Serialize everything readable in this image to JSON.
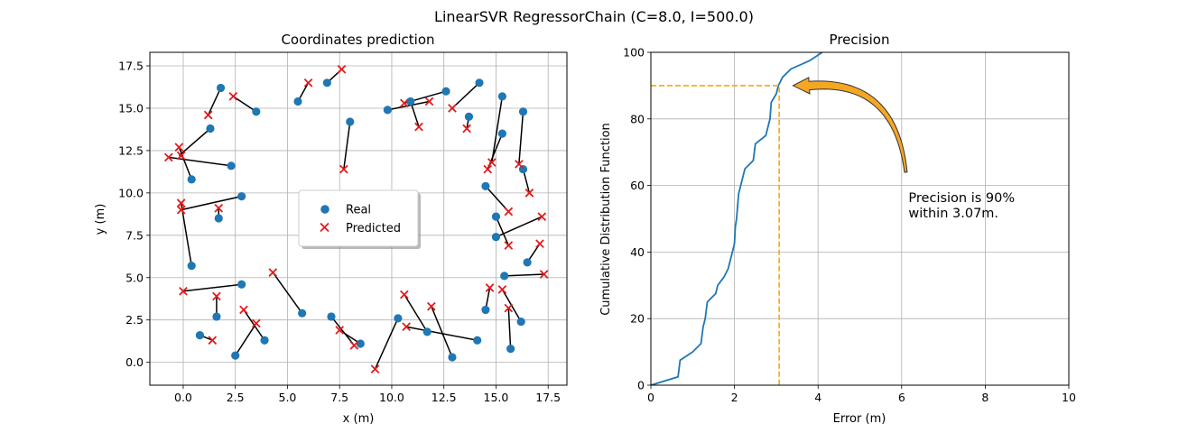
{
  "figure": {
    "suptitle": "LinearSVR RegressorChain (C=8.0, I=500.0)"
  },
  "chart_data": [
    {
      "type": "scatter",
      "title": "Coordinates prediction",
      "xlabel": "x (m)",
      "ylabel": "y (m)",
      "xlim": [
        -1.6,
        18.4
      ],
      "ylim": [
        -1.35,
        18.3
      ],
      "xticks": [
        "0.0",
        "2.5",
        "5.0",
        "7.5",
        "10.0",
        "12.5",
        "15.0",
        "17.5"
      ],
      "xtick_values": [
        0,
        2.5,
        5,
        7.5,
        10,
        12.5,
        15,
        17.5
      ],
      "yticks": [
        "0.0",
        "2.5",
        "5.0",
        "7.5",
        "10.0",
        "12.5",
        "15.0",
        "17.5"
      ],
      "ytick_values": [
        0,
        2.5,
        5,
        7.5,
        10,
        12.5,
        15,
        17.5
      ],
      "grid": true,
      "legend": {
        "placement": "center",
        "entries": [
          {
            "label": "Real",
            "marker": "circle",
            "color": "#1f77b4"
          },
          {
            "label": "Predicted",
            "marker": "x",
            "color": "#e41a1c"
          }
        ]
      },
      "series": [
        {
          "name": "Real",
          "color": "#1f77b4",
          "points": [
            [
              1.8,
              16.2
            ],
            [
              3.5,
              14.8
            ],
            [
              1.3,
              13.8
            ],
            [
              2.3,
              11.6
            ],
            [
              0.4,
              10.8
            ],
            [
              2.8,
              9.8
            ],
            [
              1.7,
              8.5
            ],
            [
              0.4,
              5.7
            ],
            [
              2.8,
              4.6
            ],
            [
              1.6,
              2.7
            ],
            [
              0.8,
              1.6
            ],
            [
              2.5,
              0.4
            ],
            [
              3.9,
              1.3
            ],
            [
              5.7,
              2.9
            ],
            [
              7.1,
              2.7
            ],
            [
              8.5,
              1.1
            ],
            [
              5.5,
              15.4
            ],
            [
              6.9,
              16.5
            ],
            [
              8.0,
              14.2
            ],
            [
              9.8,
              14.9
            ],
            [
              10.9,
              15.4
            ],
            [
              12.6,
              16.0
            ],
            [
              14.2,
              16.5
            ],
            [
              13.7,
              14.5
            ],
            [
              15.3,
              15.7
            ],
            [
              15.3,
              13.5
            ],
            [
              16.3,
              14.8
            ],
            [
              16.3,
              11.4
            ],
            [
              14.5,
              10.4
            ],
            [
              15.0,
              8.6
            ],
            [
              15.0,
              7.4
            ],
            [
              16.5,
              5.9
            ],
            [
              15.4,
              5.1
            ],
            [
              14.5,
              3.1
            ],
            [
              16.2,
              2.4
            ],
            [
              15.7,
              0.8
            ],
            [
              10.3,
              2.6
            ],
            [
              11.7,
              1.8
            ],
            [
              12.9,
              0.3
            ],
            [
              14.1,
              1.3
            ]
          ]
        },
        {
          "name": "Predicted",
          "color": "#e41a1c",
          "points": [
            [
              2.4,
              15.7
            ],
            [
              1.2,
              14.6
            ],
            [
              -0.2,
              12.7
            ],
            [
              -0.7,
              12.1
            ],
            [
              -0.1,
              12.2
            ],
            [
              -0.1,
              9.4
            ],
            [
              -0.1,
              9.0
            ],
            [
              1.7,
              9.1
            ],
            [
              0.0,
              4.2
            ],
            [
              1.6,
              3.9
            ],
            [
              1.4,
              1.3
            ],
            [
              2.9,
              3.1
            ],
            [
              3.5,
              2.3
            ],
            [
              4.3,
              5.3
            ],
            [
              7.5,
              1.9
            ],
            [
              8.2,
              1.0
            ],
            [
              6.0,
              16.5
            ],
            [
              7.6,
              17.3
            ],
            [
              7.7,
              11.4
            ],
            [
              10.6,
              15.3
            ],
            [
              11.3,
              13.9
            ],
            [
              11.8,
              15.4
            ],
            [
              12.9,
              15.0
            ],
            [
              13.6,
              13.8
            ],
            [
              14.6,
              11.4
            ],
            [
              14.8,
              11.8
            ],
            [
              16.1,
              11.7
            ],
            [
              16.6,
              10.0
            ],
            [
              15.6,
              8.9
            ],
            [
              17.2,
              8.6
            ],
            [
              15.6,
              6.9
            ],
            [
              17.1,
              7.0
            ],
            [
              17.3,
              5.2
            ],
            [
              14.7,
              4.4
            ],
            [
              15.3,
              4.3
            ],
            [
              15.6,
              3.2
            ],
            [
              10.6,
              4.0
            ],
            [
              10.7,
              2.1
            ],
            [
              11.9,
              3.3
            ],
            [
              9.2,
              -0.4
            ]
          ]
        },
        {
          "name": "",
          "color": "#000000",
          "segments": [
            [
              [
                1.8,
                16.2
              ],
              [
                1.2,
                14.6
              ]
            ],
            [
              [
                3.5,
                14.8
              ],
              [
                2.4,
                15.7
              ]
            ],
            [
              [
                1.3,
                13.8
              ],
              [
                -0.2,
                12.2
              ]
            ],
            [
              [
                2.3,
                11.6
              ],
              [
                -0.7,
                12.1
              ]
            ],
            [
              [
                0.4,
                10.8
              ],
              [
                -0.2,
                12.7
              ]
            ],
            [
              [
                2.8,
                9.8
              ],
              [
                -0.1,
                9.0
              ]
            ],
            [
              [
                1.7,
                8.5
              ],
              [
                1.7,
                9.1
              ]
            ],
            [
              [
                0.4,
                5.7
              ],
              [
                -0.1,
                9.4
              ]
            ],
            [
              [
                2.8,
                4.6
              ],
              [
                0.0,
                4.2
              ]
            ],
            [
              [
                1.6,
                2.7
              ],
              [
                1.6,
                3.9
              ]
            ],
            [
              [
                0.8,
                1.6
              ],
              [
                1.4,
                1.3
              ]
            ],
            [
              [
                2.5,
                0.4
              ],
              [
                3.5,
                2.3
              ]
            ],
            [
              [
                3.9,
                1.3
              ],
              [
                2.9,
                3.1
              ]
            ],
            [
              [
                5.7,
                2.9
              ],
              [
                4.3,
                5.3
              ]
            ],
            [
              [
                7.1,
                2.7
              ],
              [
                8.2,
                1.0
              ]
            ],
            [
              [
                8.5,
                1.1
              ],
              [
                7.5,
                1.9
              ]
            ],
            [
              [
                5.5,
                15.4
              ],
              [
                6.0,
                16.5
              ]
            ],
            [
              [
                6.9,
                16.5
              ],
              [
                7.6,
                17.3
              ]
            ],
            [
              [
                8.0,
                14.2
              ],
              [
                7.7,
                11.4
              ]
            ],
            [
              [
                9.8,
                14.9
              ],
              [
                11.8,
                15.4
              ]
            ],
            [
              [
                10.9,
                15.4
              ],
              [
                11.3,
                13.9
              ]
            ],
            [
              [
                12.6,
                16.0
              ],
              [
                10.6,
                15.3
              ]
            ],
            [
              [
                14.2,
                16.5
              ],
              [
                12.9,
                15.0
              ]
            ],
            [
              [
                13.7,
                14.5
              ],
              [
                13.6,
                13.8
              ]
            ],
            [
              [
                15.3,
                15.7
              ],
              [
                14.8,
                11.8
              ]
            ],
            [
              [
                15.3,
                13.5
              ],
              [
                14.6,
                11.4
              ]
            ],
            [
              [
                16.3,
                14.8
              ],
              [
                16.1,
                11.7
              ]
            ],
            [
              [
                16.3,
                11.4
              ],
              [
                16.6,
                10.0
              ]
            ],
            [
              [
                14.5,
                10.4
              ],
              [
                15.6,
                8.9
              ]
            ],
            [
              [
                15.0,
                8.6
              ],
              [
                15.6,
                6.9
              ]
            ],
            [
              [
                15.0,
                7.4
              ],
              [
                17.2,
                8.6
              ]
            ],
            [
              [
                16.5,
                5.9
              ],
              [
                17.1,
                7.0
              ]
            ],
            [
              [
                15.4,
                5.1
              ],
              [
                17.3,
                5.2
              ]
            ],
            [
              [
                14.5,
                3.1
              ],
              [
                14.7,
                4.4
              ]
            ],
            [
              [
                16.2,
                2.4
              ],
              [
                15.3,
                4.3
              ]
            ],
            [
              [
                15.7,
                0.8
              ],
              [
                15.6,
                3.2
              ]
            ],
            [
              [
                10.3,
                2.6
              ],
              [
                9.2,
                -0.4
              ]
            ],
            [
              [
                11.7,
                1.8
              ],
              [
                10.6,
                4.0
              ]
            ],
            [
              [
                12.9,
                0.3
              ],
              [
                11.9,
                3.3
              ]
            ],
            [
              [
                14.1,
                1.3
              ],
              [
                10.7,
                2.1
              ]
            ]
          ]
        }
      ]
    },
    {
      "type": "line",
      "title": "Precision",
      "xlabel": "Error (m)",
      "ylabel": "Cumulative Distribution Function",
      "xlim": [
        0,
        10
      ],
      "ylim": [
        0,
        100
      ],
      "xticks": [
        "0",
        "2",
        "4",
        "6",
        "8",
        "10"
      ],
      "xtick_values": [
        0,
        2,
        4,
        6,
        8,
        10
      ],
      "yticks": [
        "0",
        "20",
        "40",
        "60",
        "80",
        "100"
      ],
      "ytick_values": [
        0,
        20,
        40,
        60,
        80,
        100
      ],
      "grid": true,
      "series": [
        {
          "name": "",
          "color": "#1f77b4",
          "points": [
            [
              0,
              0
            ],
            [
              0.65,
              2.5
            ],
            [
              0.7,
              7.5
            ],
            [
              1.0,
              10
            ],
            [
              1.2,
              12.5
            ],
            [
              1.25,
              17.5
            ],
            [
              1.3,
              20
            ],
            [
              1.35,
              25
            ],
            [
              1.55,
              27.5
            ],
            [
              1.6,
              30
            ],
            [
              1.75,
              32.5
            ],
            [
              1.85,
              35
            ],
            [
              1.95,
              40
            ],
            [
              2.0,
              42.5
            ],
            [
              2.02,
              47.5
            ],
            [
              2.05,
              50
            ],
            [
              2.1,
              57.5
            ],
            [
              2.2,
              62.5
            ],
            [
              2.25,
              65
            ],
            [
              2.45,
              67.5
            ],
            [
              2.5,
              72.5
            ],
            [
              2.75,
              75
            ],
            [
              2.8,
              77.5
            ],
            [
              2.85,
              80
            ],
            [
              2.88,
              85
            ],
            [
              3.0,
              87.5
            ],
            [
              3.05,
              90
            ],
            [
              3.15,
              92.5
            ],
            [
              3.35,
              95
            ],
            [
              3.8,
              97.5
            ],
            [
              4.1,
              100
            ]
          ]
        },
        {
          "name": "",
          "color": "#ffa500",
          "dashed": true,
          "points": [
            [
              0,
              90
            ],
            [
              3.07,
              90
            ],
            [
              3.07,
              0
            ]
          ]
        }
      ],
      "annotation": {
        "text_lines": [
          "Precision is 90%",
          "within 3.07m."
        ],
        "text_at": [
          6.1,
          55
        ],
        "arrow_from": [
          6.1,
          64
        ],
        "arrow_to": [
          3.4,
          90
        ],
        "arrow_color": "#f5a623"
      }
    }
  ]
}
